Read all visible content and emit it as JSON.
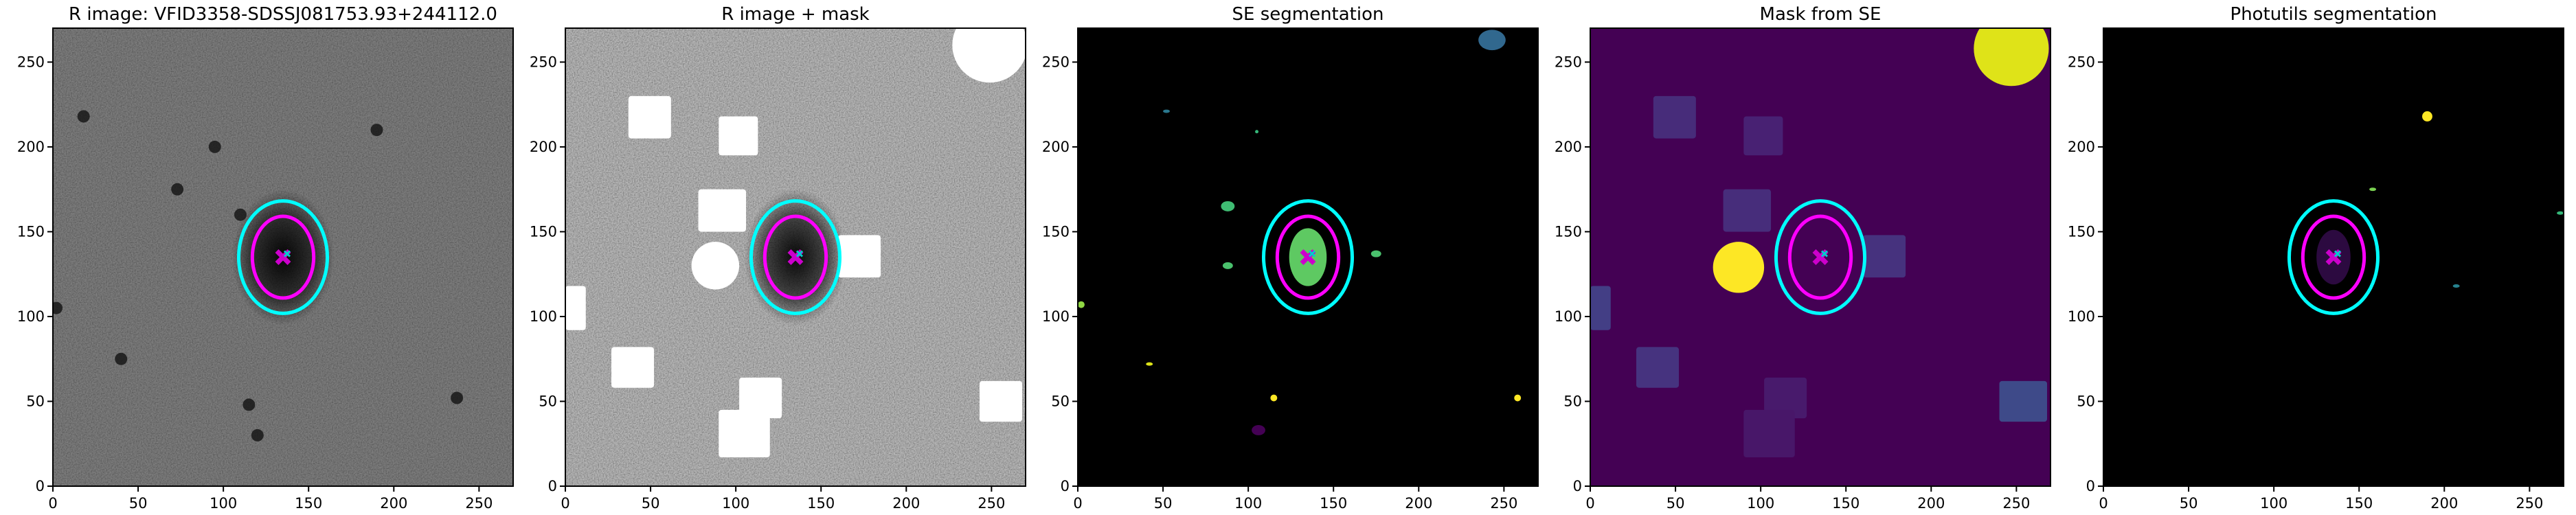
{
  "chart_data": [
    {
      "type": "image",
      "title": "R image: VFID3358-SDSSJ081753.93+244112.0",
      "xlim": [
        0,
        270
      ],
      "ylim": [
        0,
        270
      ],
      "xticks": [
        0,
        50,
        100,
        150,
        200,
        250
      ],
      "yticks": [
        0,
        50,
        100,
        150,
        200,
        250
      ]
    },
    {
      "type": "image",
      "title": "R image + mask",
      "xlim": [
        0,
        270
      ],
      "ylim": [
        0,
        270
      ],
      "xticks": [
        0,
        50,
        100,
        150,
        200,
        250
      ],
      "yticks": [
        0,
        50,
        100,
        150,
        200,
        250
      ]
    },
    {
      "type": "image",
      "title": "SE segmentation",
      "xlim": [
        0,
        270
      ],
      "ylim": [
        0,
        270
      ],
      "xticks": [
        0,
        50,
        100,
        150,
        200,
        250
      ],
      "yticks": [
        0,
        50,
        100,
        150,
        200,
        250
      ]
    },
    {
      "type": "image",
      "title": "Mask from SE",
      "xlim": [
        0,
        270
      ],
      "ylim": [
        0,
        270
      ],
      "xticks": [
        0,
        50,
        100,
        150,
        200,
        250
      ],
      "yticks": [
        0,
        50,
        100,
        150,
        200,
        250
      ]
    },
    {
      "type": "image",
      "title": "Photutils segmentation",
      "xlim": [
        0,
        270
      ],
      "ylim": [
        0,
        270
      ],
      "xticks": [
        0,
        50,
        100,
        150,
        200,
        250
      ],
      "yticks": [
        0,
        50,
        100,
        150,
        200,
        250
      ]
    }
  ]
}
